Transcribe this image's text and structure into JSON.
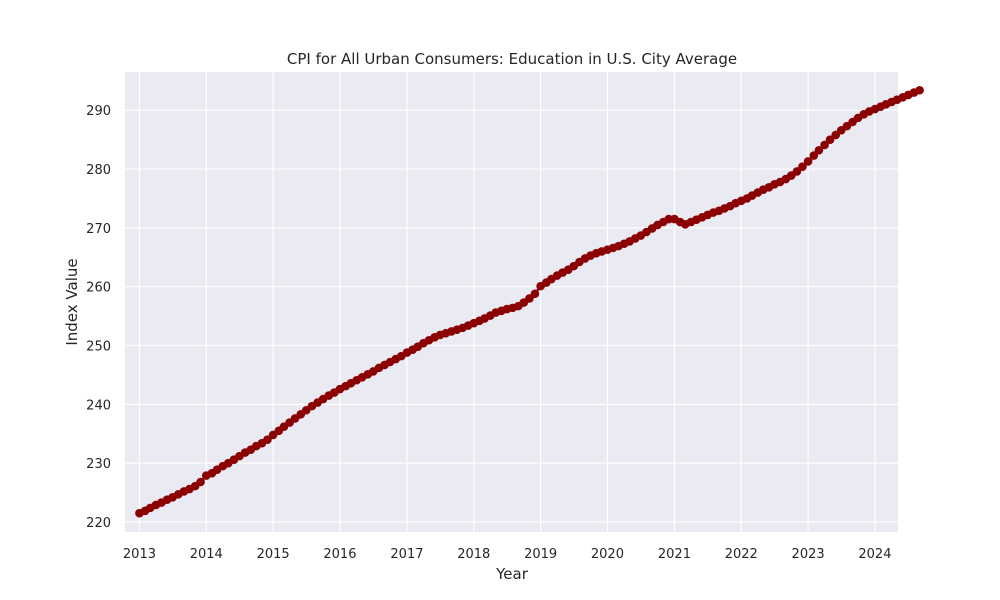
{
  "chart_data": {
    "type": "line",
    "title": "CPI for All Urban Consumers: Education in U.S. City Average",
    "xlabel": "Year",
    "ylabel": "Index Value",
    "xlim": [
      "2012-10-14",
      "2024-05-06"
    ],
    "ylim": [
      218.3,
      296.5
    ],
    "x_ticks": [
      "2013",
      "2014",
      "2015",
      "2016",
      "2017",
      "2018",
      "2019",
      "2020",
      "2021",
      "2022",
      "2023",
      "2024"
    ],
    "y_ticks": [
      220,
      230,
      240,
      250,
      260,
      270,
      280,
      290
    ],
    "grid": true,
    "colors": {
      "background": "#eaeaf2",
      "grid": "#ffffff",
      "series": "#8b0000"
    },
    "series": [
      {
        "x_start": "2013-01",
        "frequency": "monthly",
        "values": [
          221.5,
          221.9,
          222.4,
          222.9,
          223.3,
          223.8,
          224.2,
          224.7,
          225.2,
          225.6,
          226.1,
          226.8,
          227.9,
          228.3,
          228.9,
          229.5,
          230.0,
          230.6,
          231.2,
          231.8,
          232.3,
          232.9,
          233.4,
          234.0,
          234.8,
          235.5,
          236.2,
          236.9,
          237.6,
          238.3,
          239.0,
          239.7,
          240.3,
          240.9,
          241.5,
          242.0,
          242.6,
          243.1,
          243.6,
          244.1,
          244.6,
          245.1,
          245.6,
          246.2,
          246.7,
          247.2,
          247.7,
          248.2,
          248.8,
          249.3,
          249.8,
          250.4,
          250.9,
          251.4,
          251.8,
          252.1,
          252.4,
          252.7,
          253.0,
          253.4,
          253.8,
          254.2,
          254.6,
          255.1,
          255.6,
          255.9,
          256.2,
          256.4,
          256.7,
          257.3,
          258.0,
          258.8,
          260.1,
          260.7,
          261.3,
          261.9,
          262.4,
          262.9,
          263.5,
          264.2,
          264.8,
          265.3,
          265.7,
          266.0,
          266.3,
          266.6,
          266.9,
          267.3,
          267.7,
          268.2,
          268.7,
          269.3,
          269.9,
          270.5,
          271.0,
          271.5,
          271.5,
          271.0,
          270.6,
          271.0,
          271.4,
          271.8,
          272.2,
          272.6,
          272.9,
          273.3,
          273.7,
          274.2,
          274.6,
          275.0,
          275.5,
          276.0,
          276.5,
          276.9,
          277.4,
          277.8,
          278.3,
          278.9,
          279.6,
          280.4,
          281.3,
          282.3,
          283.2,
          284.1,
          285.0,
          285.8,
          286.6,
          287.3,
          288.0,
          288.7,
          289.3,
          289.8,
          290.2,
          290.6,
          291.0,
          291.4,
          291.8,
          292.2,
          292.6,
          293.0,
          293.4
        ]
      }
    ]
  }
}
